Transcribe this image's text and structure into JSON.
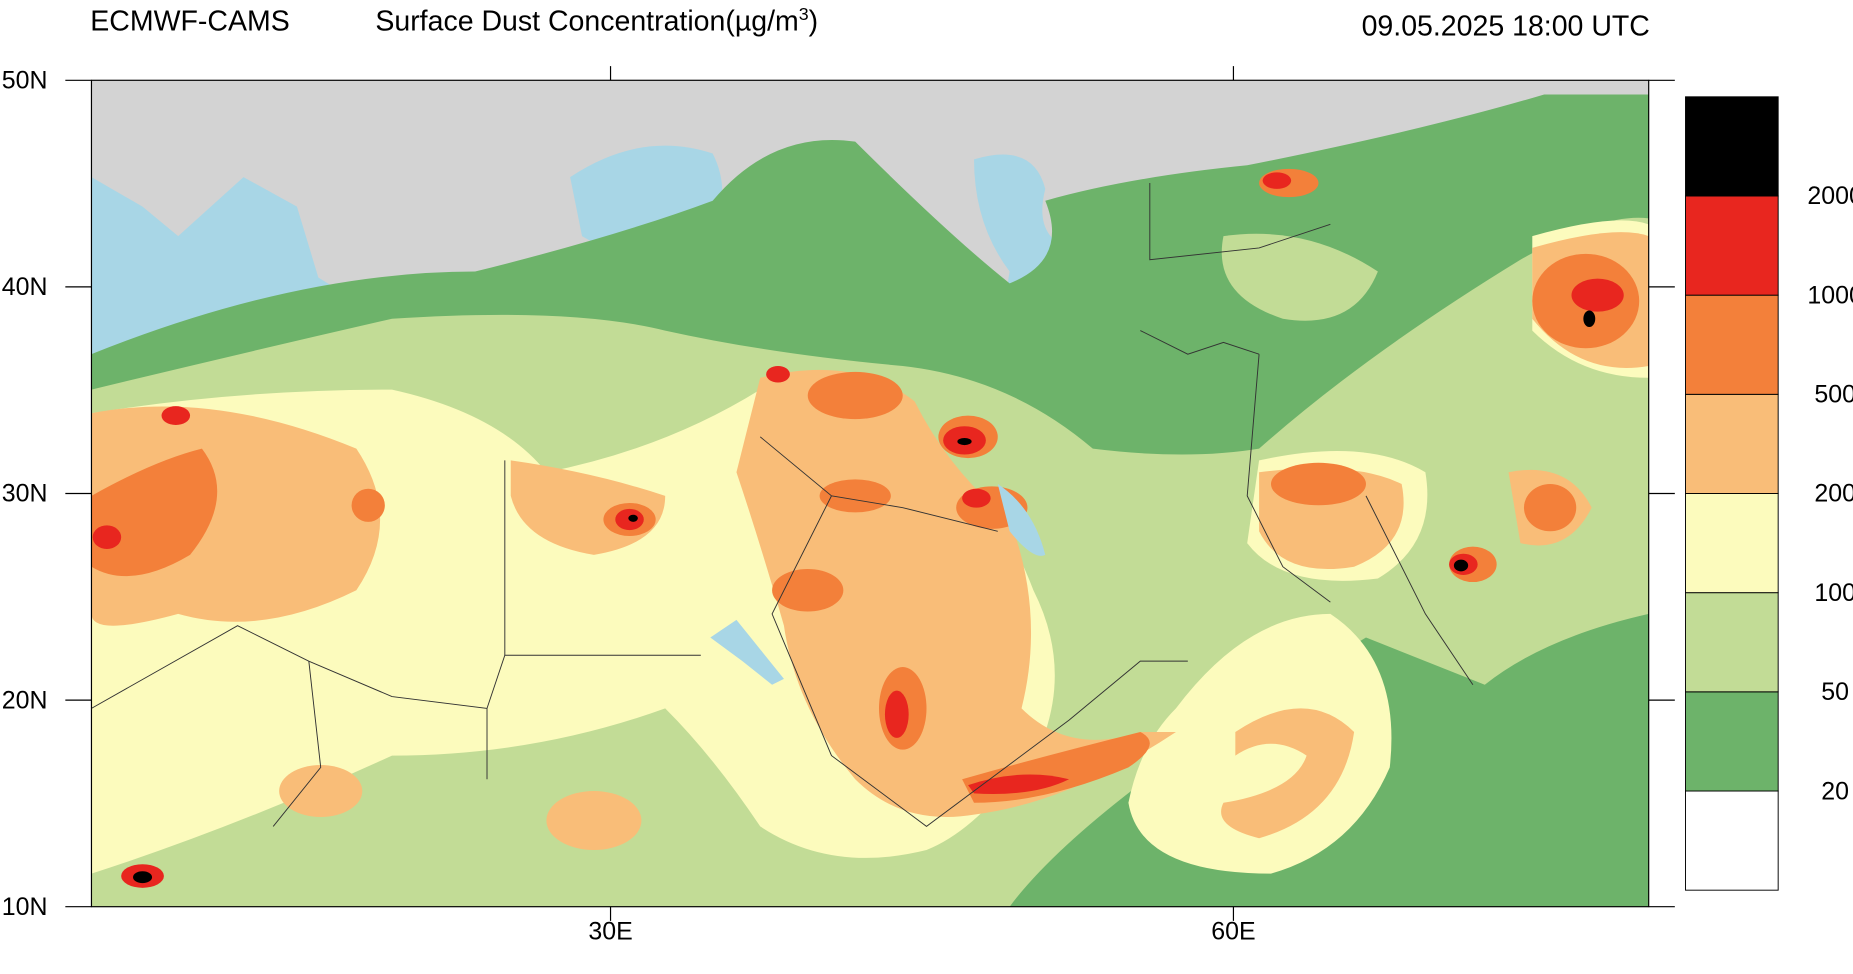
{
  "header": {
    "product": "ECMWF-CAMS",
    "title": "Surface Dust Concentration(µg/m",
    "title_superscript": "3",
    "title_close": ")",
    "valid_time": "09.05.2025 18:00 UTC"
  },
  "map": {
    "xlim": [
      5,
      80
    ],
    "ylim": [
      10,
      50
    ],
    "xticks": [
      {
        "value": 30,
        "label": "30E"
      },
      {
        "value": 60,
        "label": "60E"
      }
    ],
    "yticks": [
      {
        "value": 10,
        "label": "10N"
      },
      {
        "value": 20,
        "label": "20N"
      },
      {
        "value": 30,
        "label": "30N"
      },
      {
        "value": 40,
        "label": "40N"
      },
      {
        "value": 50,
        "label": "50N"
      }
    ]
  },
  "colorbar": {
    "levels": [
      20,
      50,
      100,
      200,
      500,
      1000,
      2000
    ],
    "colors": [
      "#ffffff",
      "#6db36a",
      "#c2dc96",
      "#fcfbbd",
      "#f9bd78",
      "#f3803a",
      "#e8261f",
      "#000000"
    ]
  }
}
